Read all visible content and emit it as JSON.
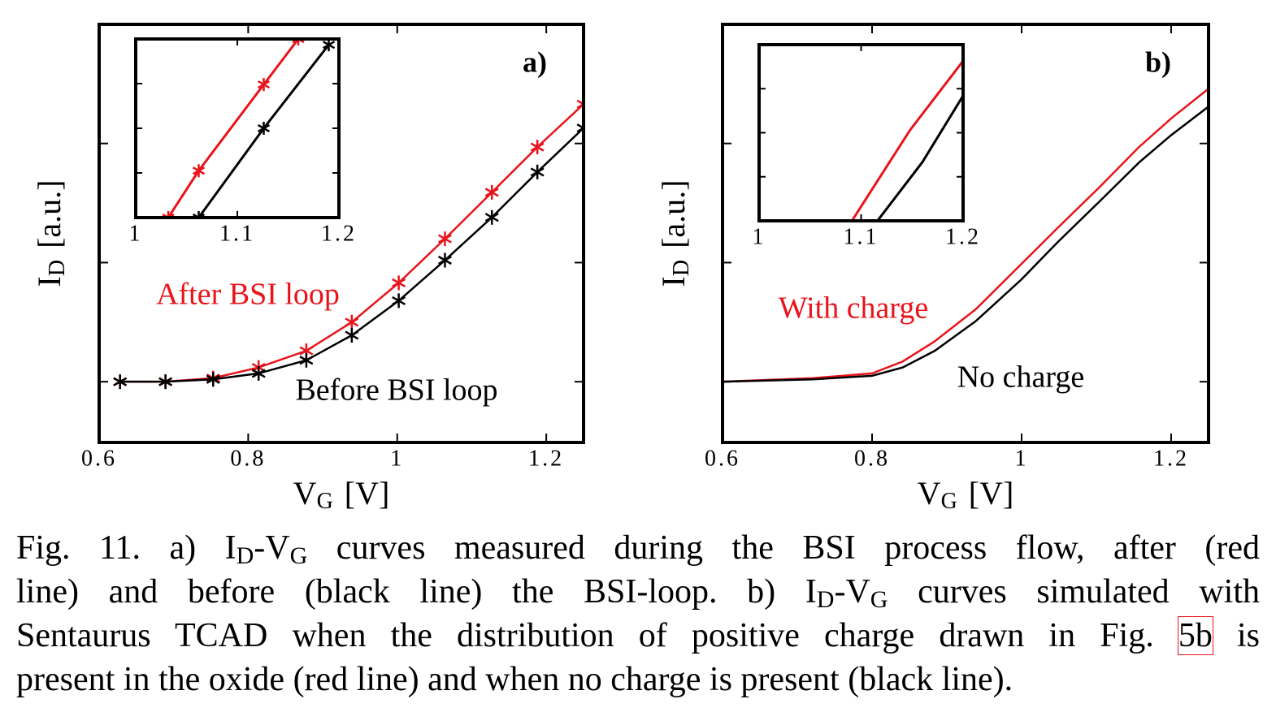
{
  "chart_data": [
    {
      "type": "line",
      "label": "a)",
      "ylabel": [
        "I",
        "D",
        "[a.u.]"
      ],
      "xlabel": [
        "V",
        "G",
        "[V]"
      ],
      "xlim": [
        0.6,
        1.25
      ],
      "xticks": [
        0.6,
        0.8,
        1,
        1.2
      ],
      "ylim": [
        -0.51,
        3.0
      ],
      "yticks": [
        0,
        1,
        2
      ],
      "annotations": [
        "After BSI loop",
        "Before BSI loop"
      ],
      "series": [
        {
          "color": "#e8141b",
          "marker": "star",
          "x": [
            0.628,
            0.689,
            0.753,
            0.814,
            0.878,
            0.939,
            1.002,
            1.064,
            1.127,
            1.188,
            1.25
          ],
          "values": [
            0,
            0,
            0.03,
            0.12,
            0.26,
            0.5,
            0.83,
            1.2,
            1.59,
            1.97,
            2.33
          ]
        },
        {
          "color": "#000000",
          "marker": "star",
          "x": [
            0.628,
            0.689,
            0.753,
            0.814,
            0.878,
            0.939,
            1.002,
            1.064,
            1.127,
            1.188,
            1.25
          ],
          "values": [
            0,
            0,
            0.02,
            0.07,
            0.18,
            0.39,
            0.68,
            1.02,
            1.38,
            1.76,
            2.13
          ]
        }
      ]
    },
    {
      "type": "line",
      "xlim": [
        1,
        1.2
      ],
      "xticks": [
        1,
        1.1,
        1.2
      ],
      "ylim": [
        0,
        4
      ],
      "yticks": [
        1,
        2,
        3
      ],
      "series": [
        {
          "color": "#e8141b",
          "marker": "star",
          "x": [
            1.032,
            1.062,
            1.126,
            1.16
          ],
          "values": [
            0,
            1.05,
            2.98,
            4
          ]
        },
        {
          "color": "#000000",
          "marker": "star",
          "x": [
            1.062,
            1.126,
            1.19
          ],
          "values": [
            0,
            2,
            3.87
          ]
        }
      ]
    },
    {
      "type": "line",
      "label": "b)",
      "ylabel": [
        "I",
        "D",
        "[a.u.]"
      ],
      "xlabel": [
        "V",
        "G",
        "[V]"
      ],
      "xlim": [
        0.6,
        1.25
      ],
      "xticks": [
        0.6,
        0.8,
        1,
        1.2
      ],
      "ylim": [
        -0.51,
        3.0
      ],
      "yticks": [
        0,
        1,
        2
      ],
      "annotations": [
        "With charge",
        "No charge"
      ],
      "series": [
        {
          "color": "#e8141b",
          "x": [
            0.6,
            0.721,
            0.8,
            0.841,
            0.884,
            0.939,
            1.0,
            1.048,
            1.102,
            1.157,
            1.2,
            1.25
          ],
          "values": [
            0,
            0.03,
            0.07,
            0.17,
            0.34,
            0.61,
            0.99,
            1.29,
            1.62,
            1.97,
            2.21,
            2.46
          ]
        },
        {
          "color": "#000000",
          "x": [
            0.6,
            0.721,
            0.8,
            0.841,
            0.884,
            0.939,
            1.0,
            1.048,
            1.102,
            1.157,
            1.2,
            1.25
          ],
          "values": [
            0,
            0.02,
            0.05,
            0.12,
            0.26,
            0.51,
            0.86,
            1.17,
            1.5,
            1.84,
            2.07,
            2.31
          ]
        }
      ]
    },
    {
      "type": "line",
      "xlim": [
        1,
        1.2
      ],
      "xticks": [
        1,
        1.1,
        1.2
      ],
      "ylim": [
        0,
        4
      ],
      "yticks": [
        1,
        2,
        3
      ],
      "series": [
        {
          "color": "#e8141b",
          "x": [
            1.091,
            1.148,
            1.2
          ],
          "values": [
            0,
            2.06,
            3.63
          ]
        },
        {
          "color": "#000000",
          "x": [
            1.116,
            1.16,
            1.2
          ],
          "values": [
            0,
            1.33,
            2.84
          ]
        }
      ]
    }
  ],
  "caption": [
    [
      "Fig. 11.  a) I",
      {
        "sub": "D"
      },
      "-V",
      {
        "sub": "G"
      },
      " curves measured during the BSI process flow, after (red"
    ],
    [
      "line) and before (black line) the BSI-loop. b) I",
      {
        "sub": "D"
      },
      "-V",
      {
        "sub": "G"
      },
      " curves simulated with"
    ],
    [
      "Sentaurus TCAD when the distribution of positive charge drawn in Fig. ",
      {
        "link": "5b"
      },
      " is"
    ],
    [
      "present in the oxide (red line) and when no charge is present (black line)."
    ]
  ]
}
